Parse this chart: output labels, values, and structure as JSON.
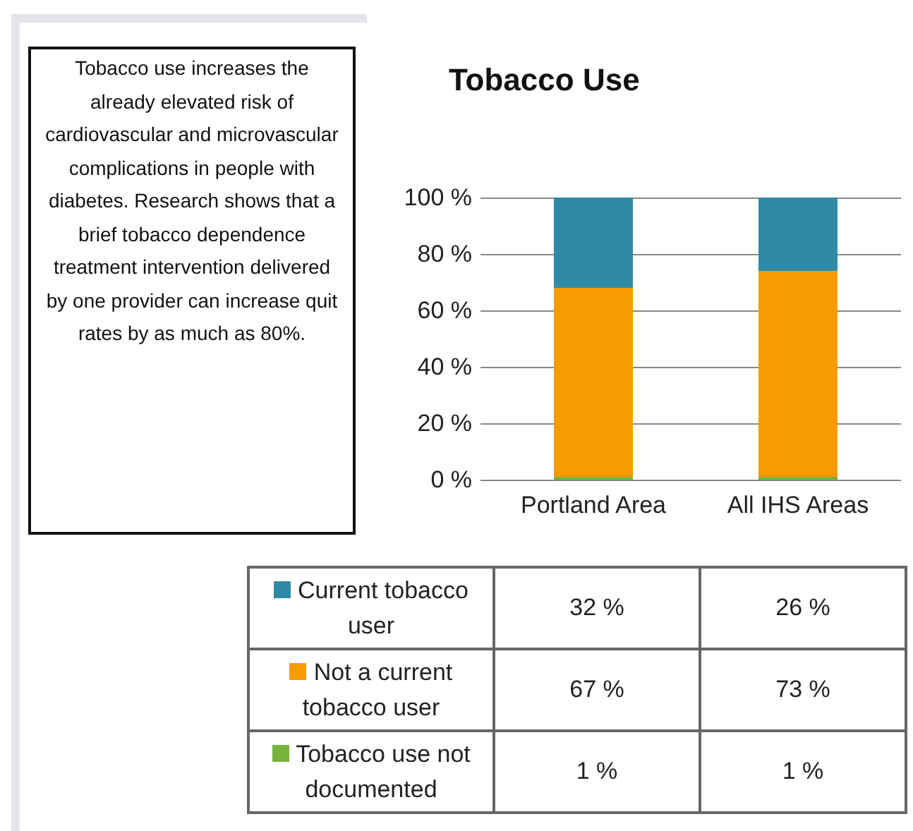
{
  "chart_data": {
    "type": "bar",
    "title": "Tobacco Use",
    "stacked": true,
    "categories": [
      "Portland Area",
      "All IHS Areas"
    ],
    "series": [
      {
        "name": "Tobacco use not documented",
        "color": "#77b33b",
        "values": [
          1,
          1
        ]
      },
      {
        "name": "Not a current tobacco user",
        "color": "#f79b00",
        "values": [
          67,
          73
        ]
      },
      {
        "name": "Current tobacco user",
        "color": "#2e8aa6",
        "values": [
          32,
          26
        ]
      }
    ],
    "ylim": [
      0,
      100
    ],
    "yticks": [
      {
        "value": 0,
        "label": "0 %"
      },
      {
        "value": 20,
        "label": "20 %"
      },
      {
        "value": 40,
        "label": "40 %"
      },
      {
        "value": 60,
        "label": "60 %"
      },
      {
        "value": 80,
        "label": "80 %"
      },
      {
        "value": 100,
        "label": "100 %"
      }
    ],
    "grid": "y",
    "legend": "bottom",
    "value_labels": [
      [
        "1 %",
        "1 %"
      ],
      [
        "67 %",
        "73 %"
      ],
      [
        "32 %",
        "26 %"
      ]
    ],
    "annotations": [
      "Tobacco use increases the already elevated risk of cardiovascular and microvascular complications in people with diabetes. Research shows that a brief tobacco dependence treatment intervention delivered by one provider can increase quit rates by as much as 80%."
    ]
  }
}
